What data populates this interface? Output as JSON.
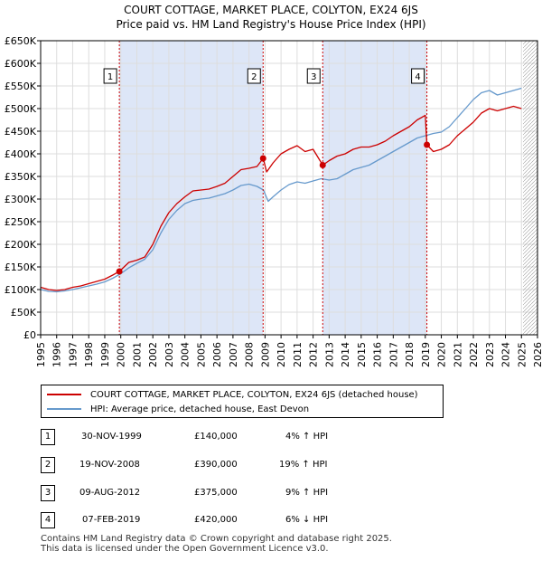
{
  "chart_data": {
    "type": "line",
    "title": "COURT COTTAGE, MARKET PLACE, COLYTON, EX24 6JS",
    "subtitle": "Price paid vs. HM Land Registry's House Price Index (HPI)",
    "xlim": [
      1995,
      2026
    ],
    "ylim": [
      0,
      650000
    ],
    "y_ticks": [
      0,
      50000,
      100000,
      150000,
      200000,
      250000,
      300000,
      350000,
      400000,
      450000,
      500000,
      550000,
      600000,
      650000
    ],
    "y_tick_labels": [
      "£0",
      "£50K",
      "£100K",
      "£150K",
      "£200K",
      "£250K",
      "£300K",
      "£350K",
      "£400K",
      "£450K",
      "£500K",
      "£550K",
      "£600K",
      "£650K"
    ],
    "x_ticks": [
      1995,
      1996,
      1997,
      1998,
      1999,
      2000,
      2001,
      2002,
      2003,
      2004,
      2005,
      2006,
      2007,
      2008,
      2009,
      2010,
      2011,
      2012,
      2013,
      2014,
      2015,
      2016,
      2017,
      2018,
      2019,
      2020,
      2021,
      2022,
      2023,
      2024,
      2025,
      2026
    ],
    "x_tick_labels": [
      "1995",
      "1996",
      "1997",
      "1998",
      "1999",
      "2000",
      "2001",
      "2002",
      "2003",
      "2004",
      "2005",
      "2006",
      "2007",
      "2008",
      "2009",
      "2010",
      "2011",
      "2012",
      "2013",
      "2014",
      "2015",
      "2016",
      "2017",
      "2018",
      "2019",
      "2020",
      "2021",
      "2022",
      "2023",
      "2024",
      "2025",
      "2026"
    ],
    "grid": true,
    "hatch_after": 2025.1,
    "shaded_ranges": [
      [
        1999.91,
        2008.88
      ],
      [
        2012.6,
        2019.1
      ]
    ],
    "series": [
      {
        "name": "COURT COTTAGE, MARKET PLACE, COLYTON, EX24 6JS (detached house)",
        "color": "#cc0000",
        "x": [
          1995.0,
          1995.5,
          1996.0,
          1996.5,
          1997.0,
          1997.5,
          1998.0,
          1998.5,
          1999.0,
          1999.5,
          1999.91,
          2000.5,
          2001.0,
          2001.5,
          2002.0,
          2002.5,
          2003.0,
          2003.5,
          2004.0,
          2004.5,
          2005.0,
          2005.5,
          2006.0,
          2006.5,
          2007.0,
          2007.5,
          2008.0,
          2008.5,
          2008.88,
          2009.1,
          2009.5,
          2010.0,
          2010.5,
          2011.0,
          2011.5,
          2012.0,
          2012.6,
          2013.0,
          2013.5,
          2014.0,
          2014.5,
          2015.0,
          2015.5,
          2016.0,
          2016.5,
          2017.0,
          2017.5,
          2018.0,
          2018.5,
          2019.0,
          2019.1,
          2019.5,
          2020.0,
          2020.5,
          2021.0,
          2021.5,
          2022.0,
          2022.5,
          2023.0,
          2023.5,
          2024.0,
          2024.5,
          2025.0
        ],
        "y": [
          105000,
          100000,
          98000,
          100000,
          105000,
          108000,
          113000,
          118000,
          123000,
          132000,
          140000,
          160000,
          165000,
          172000,
          200000,
          240000,
          270000,
          290000,
          305000,
          318000,
          320000,
          322000,
          328000,
          335000,
          350000,
          365000,
          368000,
          372000,
          390000,
          360000,
          380000,
          400000,
          410000,
          418000,
          405000,
          410000,
          375000,
          385000,
          395000,
          400000,
          410000,
          415000,
          415000,
          420000,
          428000,
          440000,
          450000,
          460000,
          475000,
          485000,
          420000,
          405000,
          410000,
          420000,
          440000,
          455000,
          470000,
          490000,
          500000,
          495000,
          500000,
          505000,
          500000
        ]
      },
      {
        "name": "HPI: Average price, detached house, East Devon",
        "color": "#6699cc",
        "x": [
          1995.0,
          1995.5,
          1996.0,
          1996.5,
          1997.0,
          1997.5,
          1998.0,
          1998.5,
          1999.0,
          1999.5,
          2000.0,
          2000.5,
          2001.0,
          2001.5,
          2002.0,
          2002.5,
          2003.0,
          2003.5,
          2004.0,
          2004.5,
          2005.0,
          2005.5,
          2006.0,
          2006.5,
          2007.0,
          2007.5,
          2008.0,
          2008.5,
          2008.9,
          2009.2,
          2009.5,
          2010.0,
          2010.5,
          2011.0,
          2011.5,
          2012.0,
          2012.5,
          2013.0,
          2013.5,
          2014.0,
          2014.5,
          2015.0,
          2015.5,
          2016.0,
          2016.5,
          2017.0,
          2017.5,
          2018.0,
          2018.5,
          2019.0,
          2019.5,
          2020.0,
          2020.5,
          2021.0,
          2021.5,
          2022.0,
          2022.5,
          2023.0,
          2023.5,
          2024.0,
          2024.5,
          2025.0
        ],
        "y": [
          100000,
          96000,
          95000,
          97000,
          100000,
          104000,
          108000,
          112000,
          117000,
          125000,
          135000,
          148000,
          158000,
          167000,
          188000,
          225000,
          255000,
          275000,
          290000,
          297000,
          300000,
          302000,
          307000,
          312000,
          320000,
          330000,
          333000,
          328000,
          320000,
          295000,
          305000,
          320000,
          332000,
          338000,
          335000,
          340000,
          345000,
          342000,
          345000,
          355000,
          365000,
          370000,
          375000,
          385000,
          395000,
          405000,
          415000,
          425000,
          435000,
          440000,
          445000,
          448000,
          460000,
          480000,
          500000,
          520000,
          535000,
          540000,
          530000,
          535000,
          540000,
          545000
        ]
      }
    ],
    "annotations": [
      {
        "label": "1",
        "x": 1999.91,
        "y": 140000
      },
      {
        "label": "2",
        "x": 2008.88,
        "y": 390000
      },
      {
        "label": "3",
        "x": 2012.6,
        "y": 375000
      },
      {
        "label": "4",
        "x": 2019.1,
        "y": 420000
      }
    ]
  },
  "legend": {
    "property_label": "COURT COTTAGE, MARKET PLACE, COLYTON, EX24 6JS (detached house)",
    "hpi_label": "HPI: Average price, detached house, East Devon"
  },
  "transactions": [
    {
      "num": "1",
      "date": "30-NOV-1999",
      "price": "£140,000",
      "hpi": "4% ↑ HPI"
    },
    {
      "num": "2",
      "date": "19-NOV-2008",
      "price": "£390,000",
      "hpi": "19% ↑ HPI"
    },
    {
      "num": "3",
      "date": "09-AUG-2012",
      "price": "£375,000",
      "hpi": "9% ↑ HPI"
    },
    {
      "num": "4",
      "date": "07-FEB-2019",
      "price": "£420,000",
      "hpi": "6% ↓ HPI"
    }
  ],
  "footer": {
    "line1": "Contains HM Land Registry data © Crown copyright and database right 2025.",
    "line2": "This data is licensed under the Open Government Licence v3.0."
  },
  "colors": {
    "property": "#cc0000",
    "hpi": "#6699cc",
    "shade": "#dde6f7",
    "grid": "#dddddd"
  }
}
